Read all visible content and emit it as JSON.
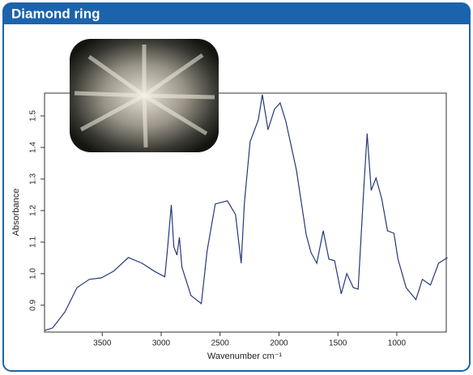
{
  "chart_data": {
    "type": "line",
    "title": "Diamond ring",
    "xlabel": "Wavenumber cm⁻¹",
    "ylabel": "Absorbance",
    "x": [
      3990,
      3921,
      3817,
      3714,
      3610,
      3507,
      3403,
      3279,
      3162,
      3059,
      2969,
      2948,
      2914,
      2893,
      2866,
      2845,
      2824,
      2748,
      2659,
      2610,
      2541,
      2438,
      2369,
      2321,
      2293,
      2245,
      2176,
      2141,
      2093,
      2038,
      1990,
      1941,
      1852,
      1769,
      1728,
      1679,
      1624,
      1576,
      1528,
      1472,
      1424,
      1369,
      1328,
      1279,
      1252,
      1217,
      1176,
      1128,
      1079,
      1024,
      990,
      921,
      838,
      783,
      714,
      645,
      569
    ],
    "values": [
      0.82,
      0.828,
      0.879,
      0.956,
      0.982,
      0.987,
      1.008,
      1.051,
      1.033,
      1.008,
      0.99,
      1.072,
      1.218,
      1.085,
      1.059,
      1.115,
      1.021,
      0.931,
      0.905,
      1.072,
      1.221,
      1.231,
      1.187,
      1.033,
      1.226,
      1.418,
      1.487,
      1.567,
      1.456,
      1.521,
      1.541,
      1.482,
      1.328,
      1.123,
      1.067,
      1.033,
      1.136,
      1.046,
      1.041,
      0.936,
      1.0,
      0.956,
      0.951,
      1.277,
      1.444,
      1.264,
      1.303,
      1.238,
      1.136,
      1.128,
      1.046,
      0.956,
      0.918,
      0.982,
      0.964,
      1.033,
      1.051
    ],
    "color": "#25387a",
    "xlim": [
      3990,
      580
    ],
    "xticks": [
      3500,
      3000,
      2500,
      2000,
      1500,
      1000
    ],
    "ylim": [
      0.815,
      1.572
    ],
    "yticks": [
      0.9,
      {
        "value": 1,
        "label": "1.0"
      },
      1.1,
      1.2,
      1.3,
      1.4,
      1.5
    ]
  }
}
